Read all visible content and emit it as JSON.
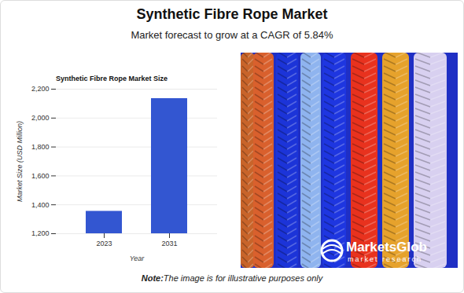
{
  "header": {
    "title": "Synthetic Fibre Rope Market",
    "subtitle": "Market forecast to grow at a CAGR of 5.84%"
  },
  "chart_data": {
    "type": "bar",
    "title": "Synthetic Fibre Rope Market Size",
    "x_label": "Year",
    "y_label": "Market Size (USD Million)",
    "categories": [
      "2023",
      "2031"
    ],
    "values": [
      1355,
      2135
    ],
    "color": "#3356d1",
    "ylim": [
      1200,
      2200
    ],
    "yticks": [
      {
        "value": 1200,
        "label": "1,200"
      },
      {
        "value": 1400,
        "label": "1,400"
      },
      {
        "value": 1600,
        "label": "1,600"
      },
      {
        "value": 1800,
        "label": "1,800"
      },
      {
        "value": 2000,
        "label": "2,000"
      },
      {
        "value": 2200,
        "label": "2,200"
      }
    ],
    "grid": true
  },
  "image": {
    "brand": "MarketsGlob",
    "brand_tagline": "market research"
  },
  "note": {
    "label": "Note:",
    "text": "The image is for illustrative purposes only"
  }
}
